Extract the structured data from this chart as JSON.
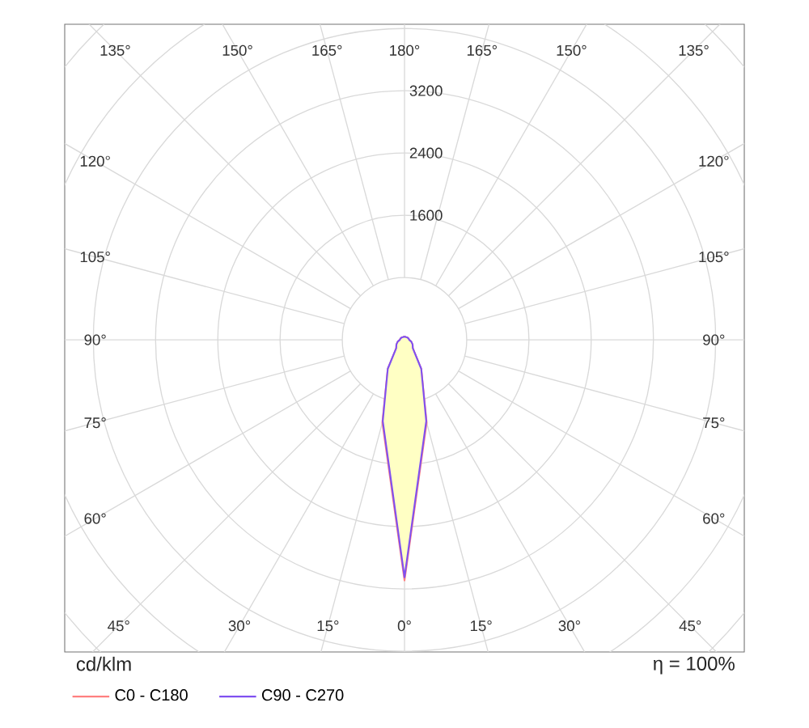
{
  "chart_data": {
    "type": "radar",
    "categories": [
      "180°",
      "165°",
      "150°",
      "135°",
      "120°",
      "105°",
      "90°",
      "75°",
      "60°",
      "45°",
      "30°",
      "15°",
      "0°",
      "15°",
      "30°",
      "45°",
      "60°",
      "75°",
      "90°",
      "105°",
      "120°",
      "135°",
      "150°",
      "165°"
    ],
    "ylabel": "cd/klm",
    "annotations": [
      "η = 100%"
    ],
    "ylim": [
      0,
      5600
    ],
    "yticks": [
      1600,
      2400,
      3200
    ],
    "grid": true,
    "legend": "bottom",
    "series": [
      {
        "name": "C0 - C180",
        "color": "#ff8080",
        "values": [
          40,
          40,
          40,
          45,
          50,
          55,
          60,
          90,
          120,
          150,
          430,
          1100,
          3090,
          1100,
          430,
          150,
          120,
          90,
          60,
          55,
          50,
          45,
          40,
          40
        ]
      },
      {
        "name": "C90 - C270",
        "color": "#8050f0",
        "values": [
          40,
          40,
          40,
          45,
          50,
          55,
          60,
          90,
          120,
          150,
          430,
          1080,
          3050,
          1080,
          430,
          150,
          120,
          90,
          60,
          55,
          50,
          45,
          40,
          40
        ]
      }
    ]
  }
}
